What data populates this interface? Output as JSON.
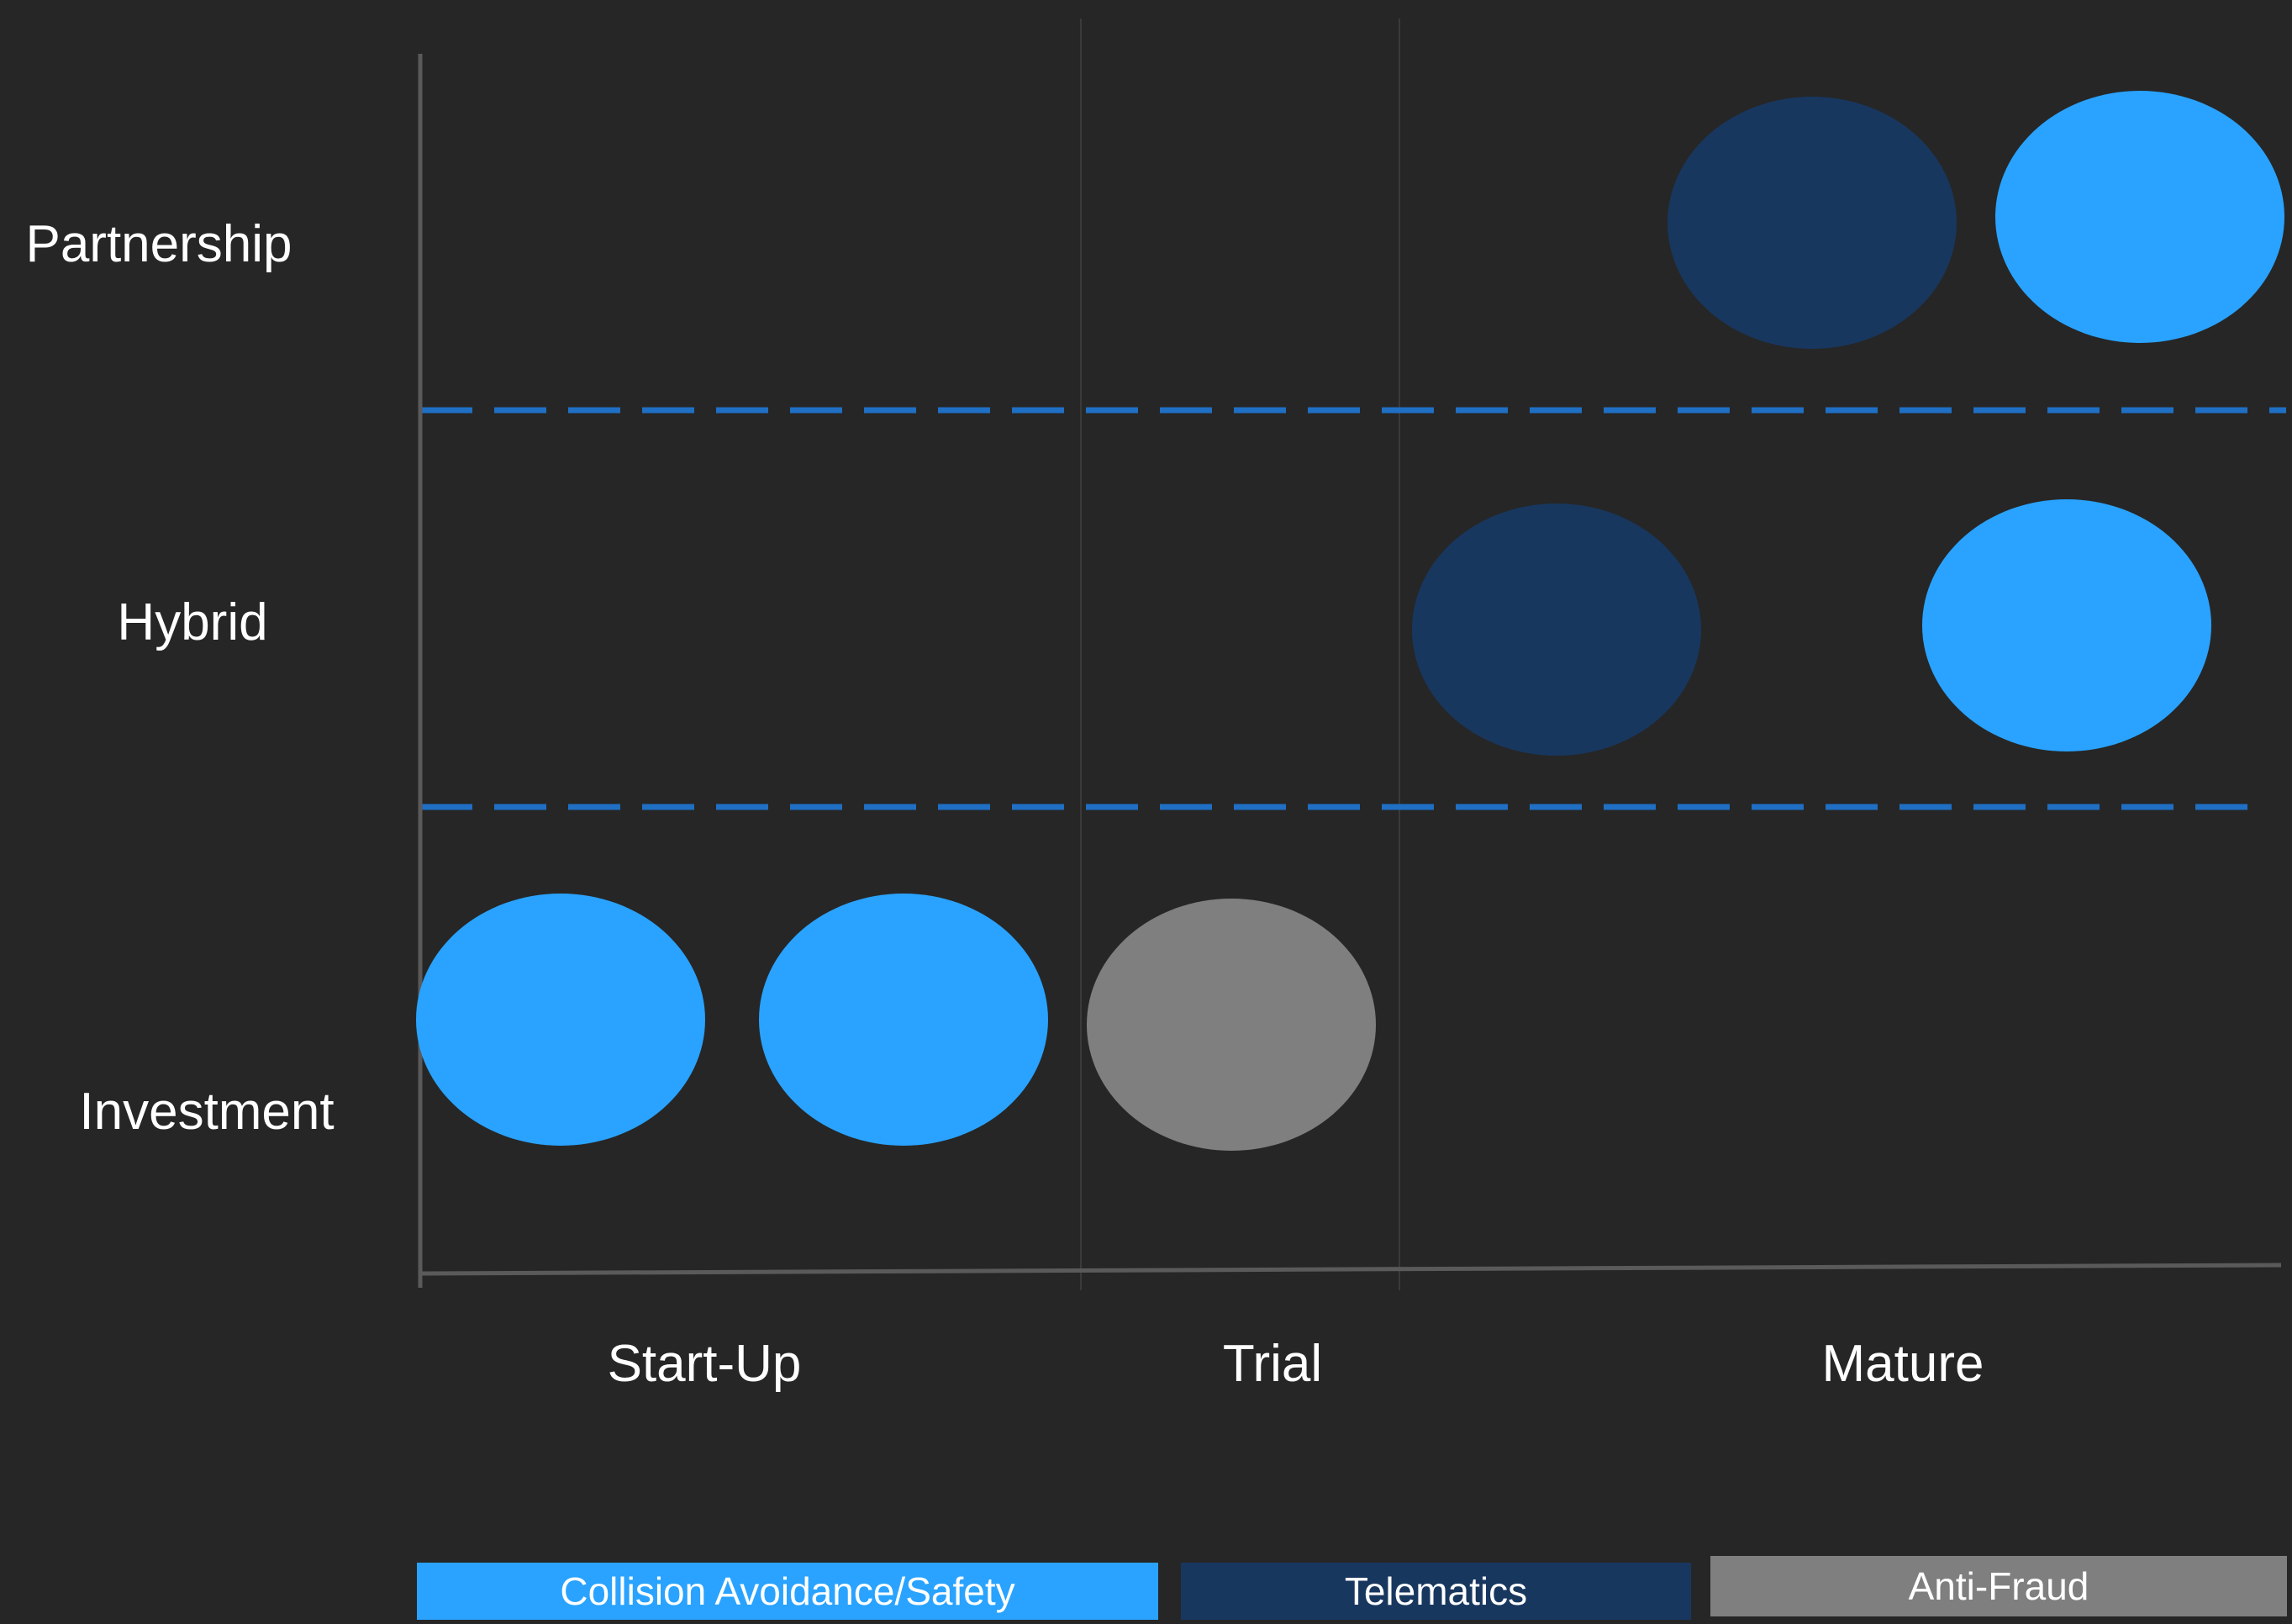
{
  "rows": [
    {
      "label": "Partnership"
    },
    {
      "label": "Hybrid"
    },
    {
      "label": "Investment"
    }
  ],
  "columns": [
    {
      "label": "Start-Up"
    },
    {
      "label": "Trial"
    },
    {
      "label": "Mature"
    }
  ],
  "legend": [
    {
      "label": "Collision Avoidance/Safety",
      "color": "#29a3ff"
    },
    {
      "label": "Telematics",
      "color": "#18375f"
    },
    {
      "label": "Anti-Fraud",
      "color": "#7f7f7f"
    }
  ],
  "colors": {
    "background": "#262626",
    "axis": "#5a5a5a",
    "divider": "#1f6fc4",
    "stage_separator": "#3a3a3a"
  }
}
